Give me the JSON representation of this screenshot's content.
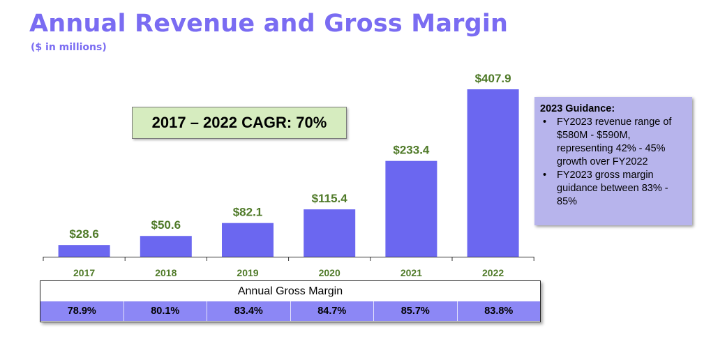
{
  "chart_data": {
    "type": "bar",
    "title": "Annual Revenue and Gross Margin",
    "subtitle": "($ in millions)",
    "categories": [
      "2017",
      "2018",
      "2019",
      "2020",
      "2021",
      "2022"
    ],
    "values": [
      28.6,
      50.6,
      82.1,
      115.4,
      233.4,
      407.9
    ],
    "data_labels": [
      "$28.6",
      "$50.6",
      "$82.1",
      "$115.4",
      "$233.4",
      "$407.9"
    ],
    "bar_color": "#6b67f0",
    "label_color": "#4f7a28",
    "grid": false
  },
  "cagr_label": "2017 – 2022 CAGR: 70%",
  "gross_margin": {
    "header": "Annual Gross Margin",
    "values": [
      "78.9%",
      "80.1%",
      "83.4%",
      "84.7%",
      "85.7%",
      "83.8%"
    ]
  },
  "guidance": {
    "heading": "2023 Guidance:",
    "bullets": [
      "FY2023 revenue range of $580M - $590M, representing 42% - 45% growth over FY2022",
      "FY2023 gross margin guidance between 83% - 85%"
    ]
  }
}
